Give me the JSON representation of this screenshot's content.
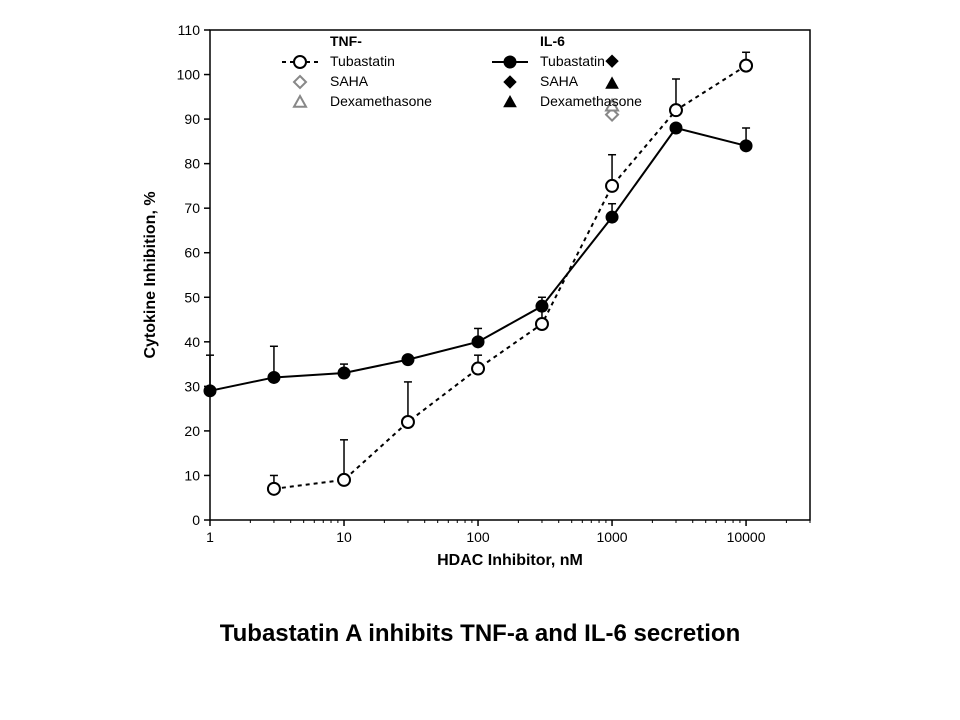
{
  "caption": {
    "text": "Tubastatin A inhibits TNF-a and IL-6 secretion",
    "fontsize": 24,
    "fontweight": "bold",
    "color": "#000000"
  },
  "chart": {
    "type": "line",
    "background_color": "#ffffff",
    "axis_color": "#000000",
    "tick_color": "#000000",
    "tick_fontsize": 14,
    "label_fontsize": 16,
    "label_fontweight": "bold",
    "xlabel": "HDAC Inhibitor, nM",
    "ylabel": "Cytokine Inhibition, %",
    "xscale": "log",
    "xlim": [
      1,
      30000
    ],
    "xticks": [
      1,
      10,
      100,
      1000,
      10000
    ],
    "xtick_labels": [
      "1",
      "10",
      "100",
      "1000",
      "10000"
    ],
    "ylim": [
      0,
      110
    ],
    "yticks": [
      0,
      10,
      20,
      30,
      40,
      50,
      60,
      70,
      80,
      90,
      100,
      110
    ],
    "ytick_labels": [
      "0",
      "10",
      "20",
      "30",
      "40",
      "50",
      "60",
      "70",
      "80",
      "90",
      "100",
      "110"
    ],
    "series": {
      "tnf_tubastatin": {
        "label": "Tubastatin",
        "group": "TNF-",
        "line_color": "#000000",
        "line_dash": "dashed",
        "line_width": 2,
        "marker": "circle-open",
        "marker_size": 6,
        "marker_color": "#000000",
        "x": [
          3,
          10,
          30,
          100,
          300,
          1000,
          3000,
          10000
        ],
        "y": [
          7,
          9,
          22,
          34,
          44,
          75,
          92,
          102
        ],
        "err": [
          3,
          9,
          9,
          3,
          3,
          7,
          7,
          3
        ]
      },
      "il6_tubastatin": {
        "label": "Tubastatin",
        "group": "IL-6",
        "line_color": "#000000",
        "line_dash": "solid",
        "line_width": 2,
        "marker": "circle-filled",
        "marker_size": 6,
        "marker_color": "#000000",
        "x": [
          1,
          3,
          10,
          30,
          100,
          300,
          1000,
          3000,
          10000
        ],
        "y": [
          29,
          32,
          33,
          36,
          40,
          48,
          68,
          88,
          84
        ],
        "err": [
          8,
          7,
          2,
          0,
          3,
          2,
          3,
          0,
          4
        ]
      }
    },
    "points": {
      "tnf_saha": {
        "label": "SAHA",
        "group": "TNF-",
        "marker": "diamond-open",
        "color": "#888888",
        "size": 6,
        "x": 1000,
        "y": 91
      },
      "tnf_dex": {
        "label": "Dexamethasone",
        "group": "TNF-",
        "marker": "triangle-open",
        "color": "#888888",
        "size": 6,
        "x": 1000,
        "y": 93
      },
      "il6_saha": {
        "label": "SAHA",
        "group": "IL-6",
        "marker": "diamond-filled",
        "color": "#000000",
        "size": 6,
        "x": 1000,
        "y": 103
      },
      "il6_dex": {
        "label": "Dexamethasone",
        "group": "IL-6",
        "marker": "triangle-filled",
        "color": "#000000",
        "size": 6,
        "x": 1000,
        "y": 98
      }
    },
    "legend": {
      "fontsize": 14,
      "header_fontweight": "bold",
      "columns": [
        {
          "header": "TNF-",
          "items": [
            {
              "ref": "tnf_tubastatin",
              "label": "Tubastatin"
            },
            {
              "ref": "tnf_saha",
              "label": "SAHA"
            },
            {
              "ref": "tnf_dex",
              "label": "Dexamethasone"
            }
          ]
        },
        {
          "header": "IL-6",
          "items": [
            {
              "ref": "il6_tubastatin",
              "label": "Tubastatin"
            },
            {
              "ref": "il6_saha",
              "label": "SAHA"
            },
            {
              "ref": "il6_dex",
              "label": "Dexamethasone"
            }
          ]
        }
      ]
    }
  }
}
